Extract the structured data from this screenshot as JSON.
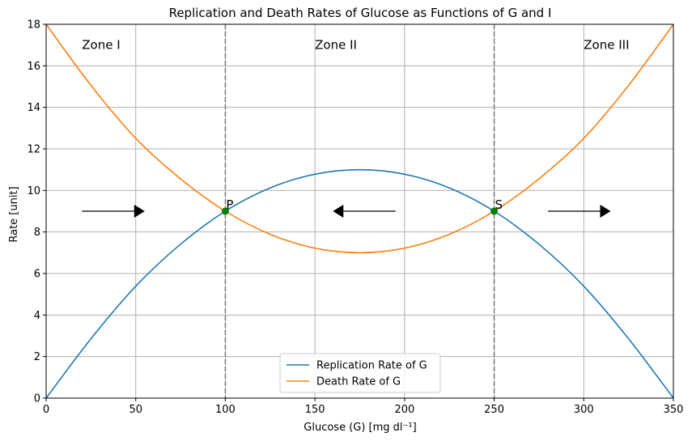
{
  "chart_data": {
    "type": "line",
    "title": "Replication and Death Rates of Glucose as Functions of G and I",
    "xlabel": "Glucose (G) [mg dl⁻¹]",
    "ylabel": "Rate [unit]",
    "xlim": [
      0,
      350
    ],
    "ylim": [
      0,
      18
    ],
    "xticks": [
      0,
      50,
      100,
      150,
      200,
      250,
      300,
      350
    ],
    "yticks": [
      0,
      2,
      4,
      6,
      8,
      10,
      12,
      14,
      16,
      18
    ],
    "grid": true,
    "legend_position": "bottom-center",
    "series": [
      {
        "name": "Replication Rate of G",
        "color": "#1f77b4",
        "x": [
          0,
          25,
          50,
          75,
          100,
          125,
          150,
          175,
          200,
          225,
          250,
          275,
          300,
          325,
          350
        ],
        "y": [
          0.0,
          2.86,
          5.39,
          7.41,
          9.0,
          10.12,
          10.78,
          11.0,
          10.78,
          10.12,
          9.0,
          7.41,
          5.39,
          2.86,
          0.0
        ]
      },
      {
        "name": "Death Rate of G",
        "color": "#ff7f0e",
        "x": [
          0,
          25,
          50,
          75,
          100,
          125,
          150,
          175,
          200,
          225,
          250,
          275,
          300,
          325,
          350
        ],
        "y": [
          18.0,
          15.06,
          12.51,
          10.56,
          9.0,
          7.89,
          7.22,
          7.0,
          7.22,
          7.89,
          9.0,
          10.56,
          12.51,
          15.06,
          18.0
        ]
      }
    ],
    "vertical_lines": [
      {
        "x": 100,
        "color": "#808080",
        "style": "dashed"
      },
      {
        "x": 250,
        "color": "#808080",
        "style": "dashed"
      }
    ],
    "points": [
      {
        "label": "P",
        "x": 100,
        "y": 9,
        "color": "#008000"
      },
      {
        "label": "S",
        "x": 250,
        "y": 9,
        "color": "#008000"
      }
    ],
    "zone_labels": [
      {
        "text": "Zone I",
        "x": 20,
        "y": 17.0
      },
      {
        "text": "Zone II",
        "x": 150,
        "y": 17.0
      },
      {
        "text": "Zone III",
        "x": 300,
        "y": 17.0
      }
    ],
    "arrows": [
      {
        "x_from": 20,
        "x_to": 55,
        "y": 9
      },
      {
        "x_from": 195,
        "x_to": 160,
        "y": 9
      },
      {
        "x_from": 280,
        "x_to": 315,
        "y": 9
      }
    ]
  }
}
